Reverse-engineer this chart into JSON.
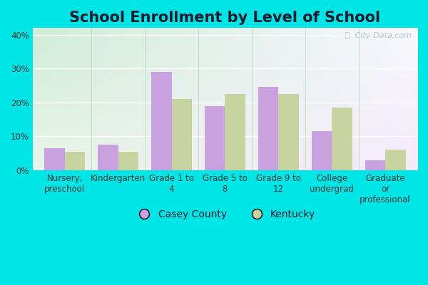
{
  "title": "School Enrollment by Level of School",
  "categories": [
    "Nursery,\npreschool",
    "Kindergarten",
    "Grade 1 to\n4",
    "Grade 5 to\n8",
    "Grade 9 to\n12",
    "College\nundergrad",
    "Graduate\nor\nprofessional"
  ],
  "casey_county": [
    6.5,
    7.5,
    29.0,
    19.0,
    24.5,
    11.5,
    3.0
  ],
  "kentucky": [
    5.5,
    5.5,
    21.0,
    22.5,
    22.5,
    18.5,
    6.0
  ],
  "casey_color": "#c9a0e0",
  "kentucky_color": "#c8d4a0",
  "bar_width": 0.38,
  "ylim": [
    0,
    42
  ],
  "yticks": [
    0,
    10,
    20,
    30,
    40
  ],
  "ytick_labels": [
    "0%",
    "10%",
    "20%",
    "30%",
    "40%"
  ],
  "legend_casey": "Casey County",
  "legend_kentucky": "Kentucky",
  "outer_bg": "#00e5e5",
  "grad_top_left": "#d0ecd8",
  "grad_bottom_right": "#f0eaf8",
  "watermark": "ⓘ  City-Data.com",
  "title_fontsize": 15,
  "axis_fontsize": 8.5,
  "legend_fontsize": 10,
  "title_color": "#1a1a2e"
}
